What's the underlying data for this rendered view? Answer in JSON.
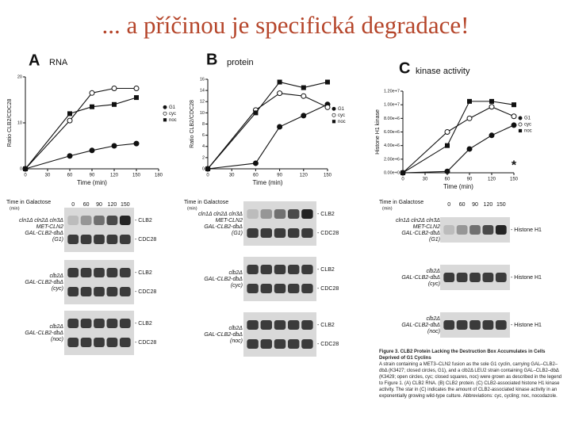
{
  "slide_title": "... a příčinou je specifická degradace!",
  "chart_data": [
    {
      "type": "line",
      "label": "A",
      "title": "RNA",
      "x_label": "Time (min)",
      "y_label": "Ratio CLB2/CDC28",
      "x": [
        0,
        60,
        90,
        120,
        150
      ],
      "xlim": [
        0,
        180
      ],
      "xticks": [
        0,
        30,
        60,
        90,
        120,
        150,
        180
      ],
      "ylim": [
        0,
        20
      ],
      "yticks": [
        0,
        10,
        20
      ],
      "legend": "right",
      "series": [
        {
          "name": "G1",
          "color": "#111111",
          "marker": "filled-circle",
          "values": [
            0,
            2.8,
            4,
            5,
            5.5
          ]
        },
        {
          "name": "cyc",
          "color": "#111111",
          "marker": "open-circle",
          "values": [
            0,
            10.5,
            16.5,
            17.5,
            17.5
          ]
        },
        {
          "name": "noc",
          "color": "#111111",
          "marker": "square",
          "values": [
            0,
            12,
            13.5,
            14,
            15.5
          ]
        }
      ]
    },
    {
      "type": "line",
      "label": "B",
      "title": "protein",
      "x_label": "Time (min)",
      "y_label": "Ratio CLB2/CDC28",
      "x": [
        0,
        60,
        90,
        120,
        150
      ],
      "xlim": [
        0,
        150
      ],
      "xticks": [
        0,
        30,
        60,
        90,
        120,
        150
      ],
      "ylim": [
        0,
        16
      ],
      "yticks": [
        0,
        2,
        4,
        6,
        8,
        10,
        12,
        14,
        16
      ],
      "legend": "right",
      "series": [
        {
          "name": "G1",
          "color": "#111111",
          "marker": "filled-circle",
          "values": [
            0,
            1,
            7.5,
            9.5,
            11.5
          ]
        },
        {
          "name": "cyc",
          "color": "#111111",
          "marker": "open-circle",
          "values": [
            0,
            10.5,
            13.5,
            13,
            11
          ]
        },
        {
          "name": "noc",
          "color": "#111111",
          "marker": "square",
          "values": [
            0,
            10,
            15.5,
            14.5,
            15.5
          ]
        }
      ]
    },
    {
      "type": "line",
      "label": "C",
      "title": "kinase activity",
      "x_label": "Time (min)",
      "y_label": "Histone H1 kinase",
      "x": [
        0,
        60,
        90,
        120,
        150
      ],
      "xlim": [
        0,
        150
      ],
      "xticks": [
        0,
        30,
        60,
        90,
        120,
        150
      ],
      "ylim": [
        0,
        12000000
      ],
      "yticks": [
        {
          "value": 0,
          "label": "0.00e+0"
        },
        {
          "value": 2000000,
          "label": "2.00e+6"
        },
        {
          "value": 4000000,
          "label": "4.00e+6"
        },
        {
          "value": 6000000,
          "label": "6.00e+6"
        },
        {
          "value": 8000000,
          "label": "8.00e+6"
        },
        {
          "value": 10000000,
          "label": "1.00e+7"
        },
        {
          "value": 12000000,
          "label": "1.20e+7"
        }
      ],
      "legend": "right",
      "reference": {
        "label": "*",
        "x": 150,
        "value": 1500000
      },
      "series": [
        {
          "name": "G1",
          "color": "#111111",
          "marker": "filled-circle",
          "values": [
            0,
            200000,
            3500000,
            5500000,
            7000000
          ]
        },
        {
          "name": "cyc",
          "color": "#111111",
          "marker": "open-circle",
          "values": [
            0,
            6000000,
            8000000,
            9700000,
            8300000
          ]
        },
        {
          "name": "noc",
          "color": "#111111",
          "marker": "square",
          "values": [
            0,
            4000000,
            10500000,
            10500000,
            10000000
          ]
        }
      ]
    }
  ],
  "blots": [
    {
      "header": "Time in Galactose",
      "header_unit": "(min)",
      "times": [
        0,
        60,
        90,
        120,
        150
      ],
      "groups": [
        {
          "strain": [
            "cln1Δ cln2Δ cln3Δ",
            "MET-CLN2",
            "GAL-CLB2-dbΔ",
            "(G1)"
          ],
          "bands": [
            "- CLB2",
            "- CDC28"
          ]
        },
        {
          "strain": [
            "clb2Δ",
            "GAL-CLB2-dbΔ",
            "(cyc)"
          ],
          "bands": [
            "- CLB2",
            "- CDC28"
          ]
        },
        {
          "strain": [
            "clb2Δ",
            "GAL-CLB2-dbΔ",
            "(noc)"
          ],
          "bands": [
            "- CLB2",
            "- CDC28"
          ]
        }
      ]
    },
    {
      "header": "Time in Galactose",
      "header_unit": "(min)",
      "times": [
        0,
        60,
        90,
        120,
        150
      ],
      "groups": [
        {
          "strain": [
            "cln1Δ cln2Δ cln3Δ",
            "MET-CLN2",
            "GAL-CLB2-dbΔ",
            "(G1)"
          ],
          "bands": [
            "- CLB2",
            "- CDC28"
          ]
        },
        {
          "strain": [
            "clb2Δ",
            "GAL-CLB2-dbΔ",
            "(cyc)"
          ],
          "bands": [
            "- CLB2",
            "- CDC28"
          ]
        },
        {
          "strain": [
            "clb2Δ",
            "GAL-CLB2-dbΔ",
            "(noc)"
          ],
          "bands": [
            "- CLB2",
            "- CDC28"
          ]
        }
      ]
    },
    {
      "header": "Time in Galactose",
      "header_unit": "(min)",
      "times": [
        0,
        60,
        90,
        120,
        150
      ],
      "groups": [
        {
          "strain": [
            "cln1Δ cln2Δ cln3Δ",
            "MET-CLN2",
            "GAL-CLB2-dbΔ",
            "(G1)"
          ],
          "bands": [
            "- Histone H1"
          ]
        },
        {
          "strain": [
            "clb2Δ",
            "GAL-CLB2-dbΔ",
            "(cyc)"
          ],
          "bands": [
            "- Histone H1"
          ]
        },
        {
          "strain": [
            "clb2Δ",
            "GAL-CLB2-dbΔ",
            "(noc)"
          ],
          "bands": [
            "- Histone H1"
          ]
        }
      ]
    }
  ],
  "caption": {
    "title": "Figure 3. CLB2 Protein Lacking the Destruction Box Accumulates in Cells Deprived of G1 Cyclins",
    "body": "A strain containing a MET3–CLN2 fusion as the sole G1 cyclin, carrying GAL–CLB2–dbΔ (K3427; closed circles, G1), and a clb2Δ LEU2 strain containing GAL–CLB2–dbΔ (K3429; open circles, cyc; closed squares, noc) were grown as described in the legend to Figure 1. (A) CLB2 RNA. (B) CLB2 protein. (C) CLB2-associated histone H1 kinase activity. The star in (C) indicates the amount of CLB2-associated kinase activity in an exponentially growing wild-type culture. Abbreviations: cyc, cycling; noc, nocodazole."
  }
}
